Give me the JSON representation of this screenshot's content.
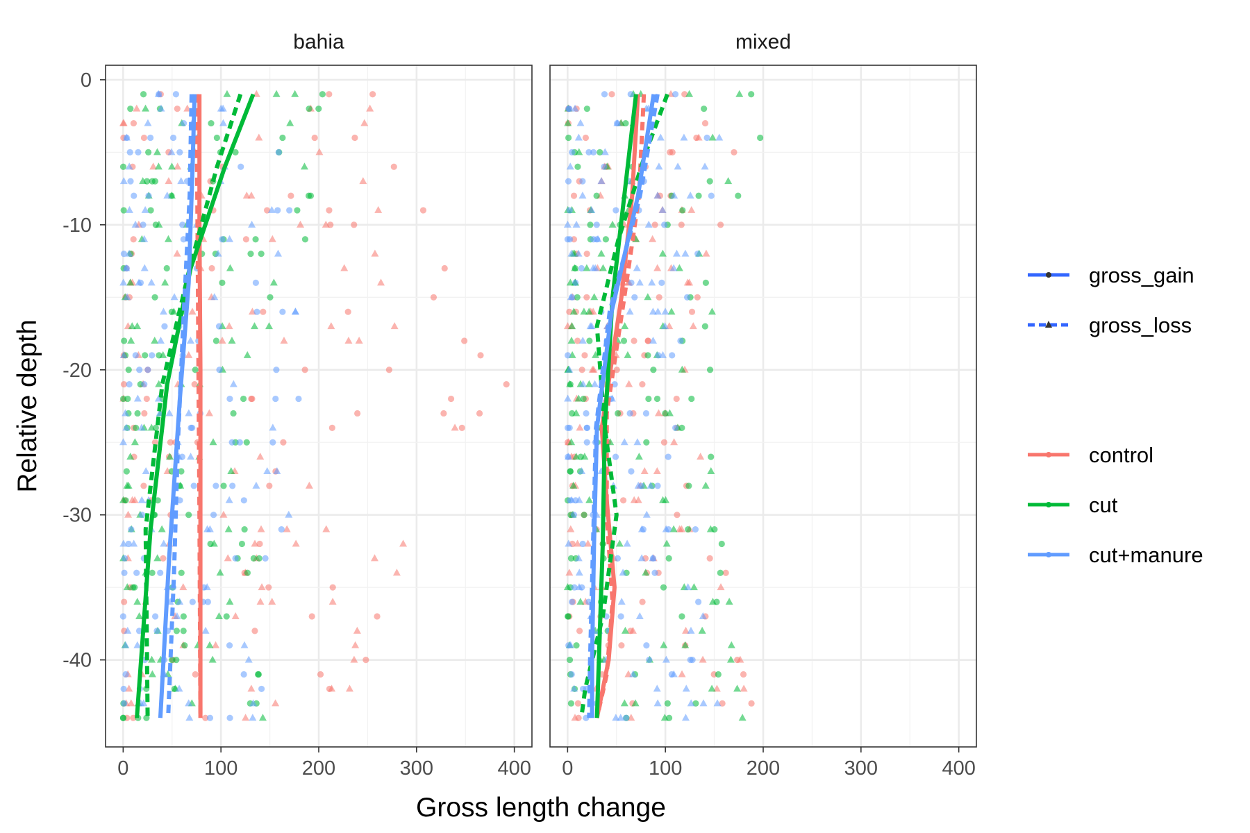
{
  "chart_data": {
    "type": "scatter",
    "xlabel": "Gross length change",
    "ylabel": "Relative depth",
    "xlim": [
      -18,
      418
    ],
    "ylim": [
      -46,
      1
    ],
    "x_ticks": [
      0,
      100,
      200,
      300,
      400
    ],
    "y_ticks": [
      0,
      -10,
      -20,
      -30,
      -40
    ],
    "grid": true,
    "legend_position": "right",
    "colors": {
      "control": "#F8766D",
      "cut": "#00BA38",
      "cut+manure": "#619CFF"
    },
    "legend_linetype": [
      {
        "label": "gross_gain",
        "line": "solid",
        "shape": "circle"
      },
      {
        "label": "gross_loss",
        "line": "dashed",
        "shape": "triangle"
      }
    ],
    "legend_treatment": [
      "control",
      "cut",
      "cut+manure"
    ],
    "panels": [
      {
        "strip": "bahia",
        "trend_lines": [
          {
            "treatment": "control",
            "metric": "gross_gain",
            "points": [
              [
                78,
                -1
              ],
              [
                78,
                -10
              ],
              [
                79,
                -20
              ],
              [
                79,
                -30
              ],
              [
                79,
                -44
              ]
            ]
          },
          {
            "treatment": "control",
            "metric": "gross_loss",
            "points": [
              [
                75,
                -1
              ],
              [
                76,
                -10
              ],
              [
                77,
                -20
              ],
              [
                78,
                -30
              ],
              [
                79,
                -44
              ]
            ]
          },
          {
            "treatment": "cut",
            "metric": "gross_gain",
            "points": [
              [
                133,
                -1
              ],
              [
                104,
                -6
              ],
              [
                69,
                -13
              ],
              [
                45,
                -21
              ],
              [
                28,
                -31
              ],
              [
                14,
                -44
              ]
            ]
          },
          {
            "treatment": "cut",
            "metric": "gross_loss",
            "points": [
              [
                120,
                -1
              ],
              [
                96,
                -6
              ],
              [
                68,
                -13
              ],
              [
                40,
                -21
              ],
              [
                23,
                -31
              ],
              [
                25,
                -44
              ]
            ]
          },
          {
            "treatment": "cut+manure",
            "metric": "gross_gain",
            "points": [
              [
                73,
                -1
              ],
              [
                71,
                -6
              ],
              [
                67,
                -14
              ],
              [
                58,
                -22
              ],
              [
                47,
                -33
              ],
              [
                38,
                -44
              ]
            ]
          },
          {
            "treatment": "cut+manure",
            "metric": "gross_loss",
            "points": [
              [
                70,
                -1
              ],
              [
                68,
                -8
              ],
              [
                62,
                -16
              ],
              [
                56,
                -25
              ],
              [
                52,
                -34
              ],
              [
                46,
                -44
              ]
            ]
          }
        ],
        "scatter_ranges": {
          "control": {
            "max_top": 250,
            "max_mid": 400,
            "max_bottom": 230
          },
          "cut": {
            "max_top": 260,
            "max_mid": 130,
            "max_bottom": 150
          },
          "cut+manure": {
            "max_top": 180,
            "max_mid": 190,
            "max_bottom": 150
          }
        }
      },
      {
        "strip": "mixed",
        "trend_lines": [
          {
            "treatment": "control",
            "metric": "gross_gain",
            "points": [
              [
                72,
                -1
              ],
              [
                66,
                -8
              ],
              [
                55,
                -15
              ],
              [
                35,
                -24
              ],
              [
                40,
                -29
              ],
              [
                48,
                -35
              ],
              [
                42,
                -40
              ],
              [
                30,
                -44
              ]
            ]
          },
          {
            "treatment": "control",
            "metric": "gross_loss",
            "points": [
              [
                78,
                -1
              ],
              [
                73,
                -8
              ],
              [
                58,
                -15
              ],
              [
                40,
                -23
              ],
              [
                40,
                -30
              ],
              [
                46,
                -36
              ],
              [
                40,
                -41
              ],
              [
                30,
                -44
              ]
            ]
          },
          {
            "treatment": "cut",
            "metric": "gross_gain",
            "points": [
              [
                70,
                -1
              ],
              [
                58,
                -8
              ],
              [
                46,
                -15
              ],
              [
                38,
                -24
              ],
              [
                36,
                -32
              ],
              [
                32,
                -40
              ],
              [
                30,
                -44
              ]
            ]
          },
          {
            "treatment": "cut",
            "metric": "gross_loss",
            "points": [
              [
                102,
                -1
              ],
              [
                80,
                -5
              ],
              [
                52,
                -11
              ],
              [
                30,
                -17
              ],
              [
                38,
                -24
              ],
              [
                50,
                -30
              ],
              [
                36,
                -37
              ],
              [
                18,
                -42
              ],
              [
                14,
                -44
              ]
            ]
          },
          {
            "treatment": "cut+manure",
            "metric": "gross_gain",
            "points": [
              [
                88,
                -1
              ],
              [
                72,
                -8
              ],
              [
                45,
                -16
              ],
              [
                30,
                -24
              ],
              [
                27,
                -32
              ],
              [
                25,
                -40
              ],
              [
                25,
                -44
              ]
            ]
          },
          {
            "treatment": "cut+manure",
            "metric": "gross_loss",
            "points": [
              [
                92,
                -1
              ],
              [
                74,
                -8
              ],
              [
                43,
                -16
              ],
              [
                29,
                -24
              ],
              [
                26,
                -32
              ],
              [
                23,
                -40
              ],
              [
                22,
                -44
              ]
            ]
          }
        ],
        "scatter_ranges": {
          "control": {
            "max_top": 185,
            "max_mid": 125,
            "max_bottom": 200
          },
          "cut": {
            "max_top": 240,
            "max_mid": 140,
            "max_bottom": 180
          },
          "cut+manure": {
            "max_top": 170,
            "max_mid": 110,
            "max_bottom": 165
          }
        }
      }
    ]
  }
}
